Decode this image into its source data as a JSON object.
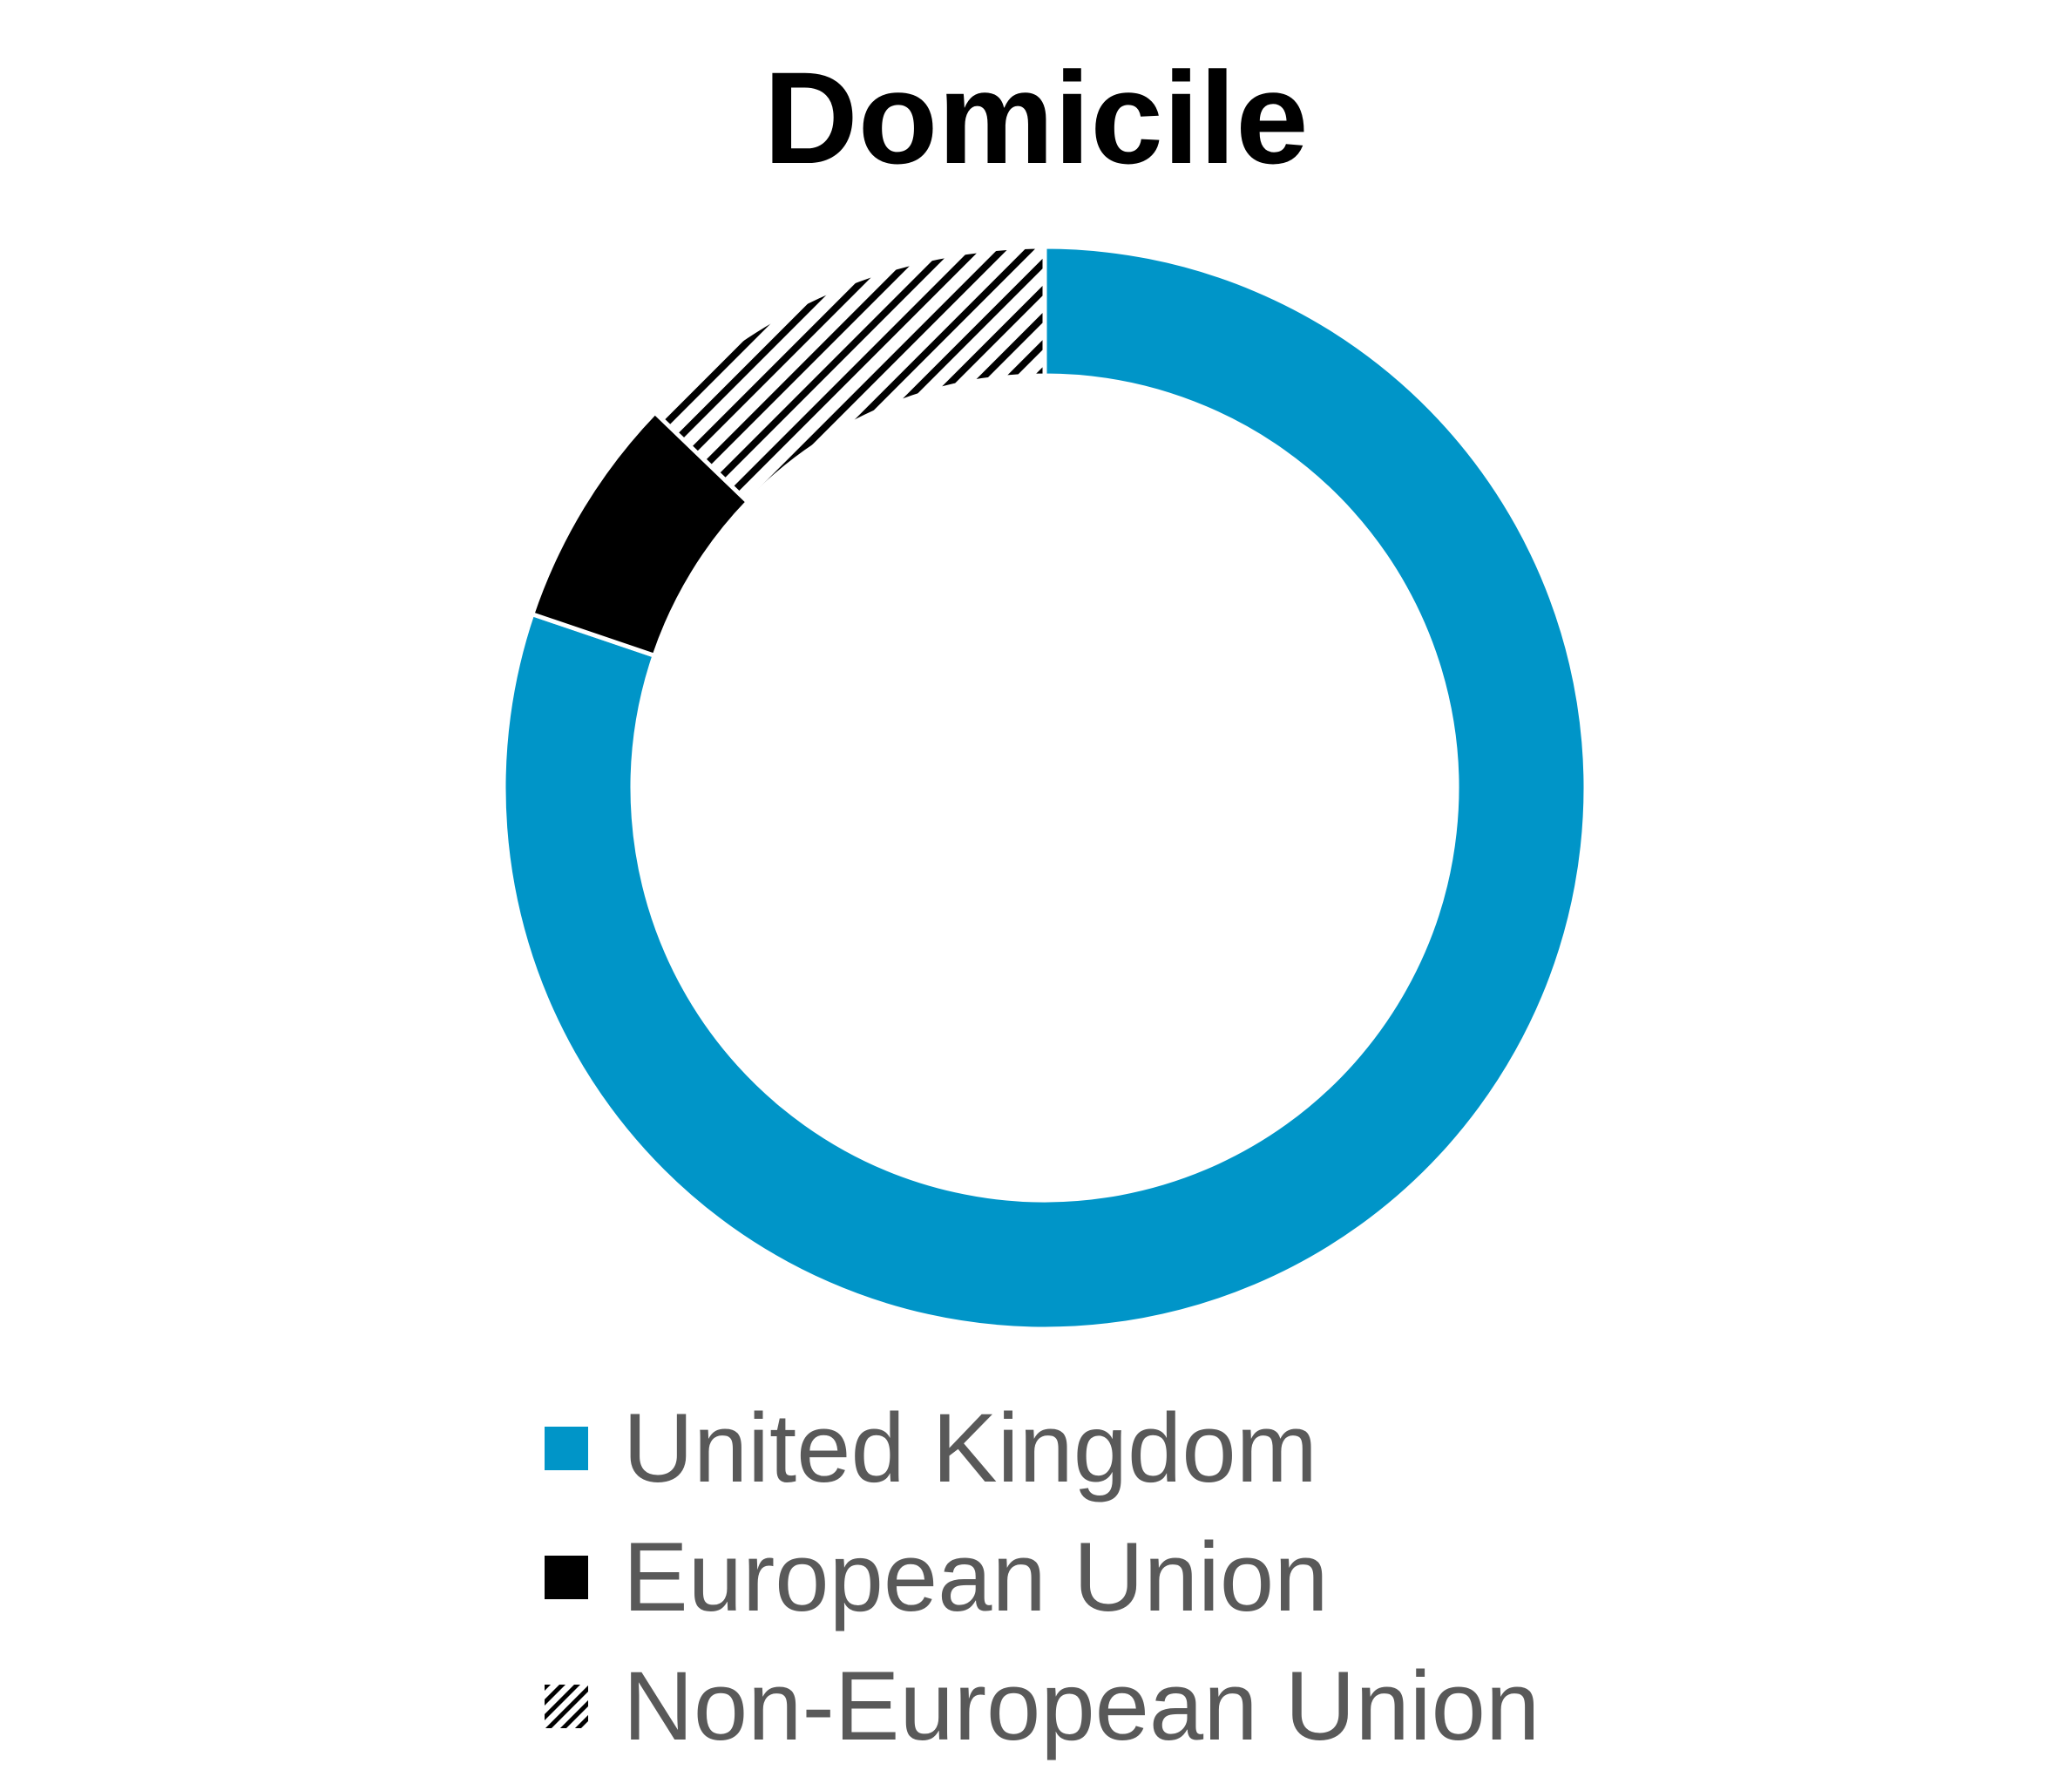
{
  "chart_data": {
    "type": "pie",
    "variant": "donut",
    "title": "Domicile",
    "categories": [
      "United Kingdom",
      "European Union",
      "Non-European Union"
    ],
    "values": [
      80.2,
      7.0,
      12.8
    ],
    "value_unit": "percent",
    "start_angle_deg": 0,
    "direction": "clockwise",
    "legend": "bottom",
    "series": [
      {
        "name": "United Kingdom",
        "value": 80.2,
        "color": "#0095c8",
        "pattern": "solid"
      },
      {
        "name": "European Union",
        "value": 7.0,
        "color": "#000000",
        "pattern": "solid"
      },
      {
        "name": "Non-European Union",
        "value": 12.8,
        "color": "#000000",
        "pattern": "diagonal-hatch"
      }
    ]
  }
}
